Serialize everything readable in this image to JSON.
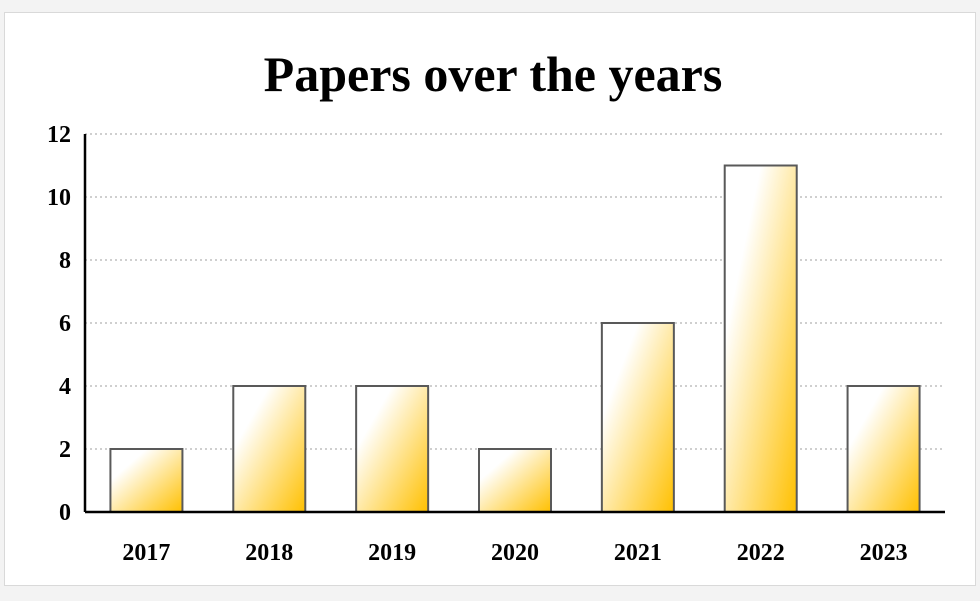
{
  "chart_data": {
    "type": "bar",
    "title": "Papers over the years",
    "categories": [
      "2017",
      "2018",
      "2019",
      "2020",
      "2021",
      "2022",
      "2023"
    ],
    "values": [
      2,
      4,
      4,
      2,
      6,
      11,
      4
    ],
    "ylim": [
      0,
      12
    ],
    "yticks": [
      "0",
      "2",
      "4",
      "6",
      "8",
      "10",
      "12"
    ],
    "grid": true,
    "legend": "none",
    "colors": {
      "bar_fill_light": "#ffffff",
      "bar_fill_dark": "#ffc000",
      "bar_outline": "#595959",
      "grid": "#bfbfbf",
      "axis": "#000000"
    }
  }
}
